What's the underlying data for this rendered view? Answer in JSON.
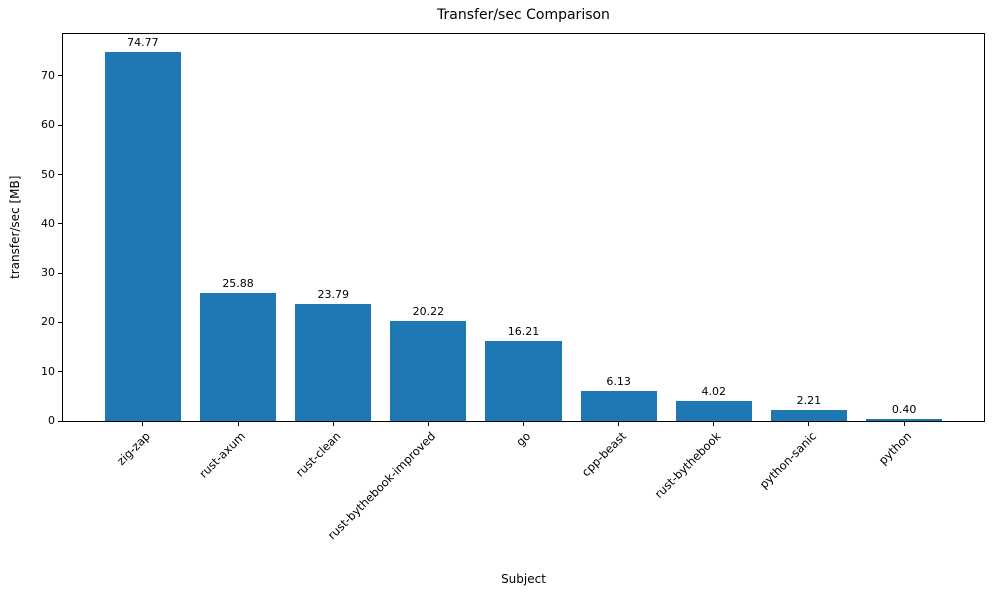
{
  "chart_data": {
    "type": "bar",
    "title": "Transfer/sec Comparison",
    "xlabel": "Subject",
    "ylabel": "transfer/sec [MB]",
    "categories": [
      "zig-zap",
      "rust-axum",
      "rust-clean",
      "rust-bythebook-improved",
      "go",
      "cpp-beast",
      "rust-bythebook",
      "python-sanic",
      "python"
    ],
    "values": [
      74.77,
      25.88,
      23.79,
      20.22,
      16.21,
      6.13,
      4.02,
      2.21,
      0.4
    ],
    "value_labels": [
      "74.77",
      "25.88",
      "23.79",
      "20.22",
      "16.21",
      "6.13",
      "4.02",
      "2.21",
      "0.40"
    ],
    "bar_color": "#1f77b4",
    "bar_width_units": 0.8,
    "xlim": [
      -0.84,
      8.84
    ],
    "ylim": [
      0,
      78.5
    ],
    "yticks": [
      0,
      10,
      20,
      30,
      40,
      50,
      60,
      70
    ],
    "grid": false,
    "legend": null,
    "background_color": "#ffffff",
    "axis_color": "#000000"
  }
}
